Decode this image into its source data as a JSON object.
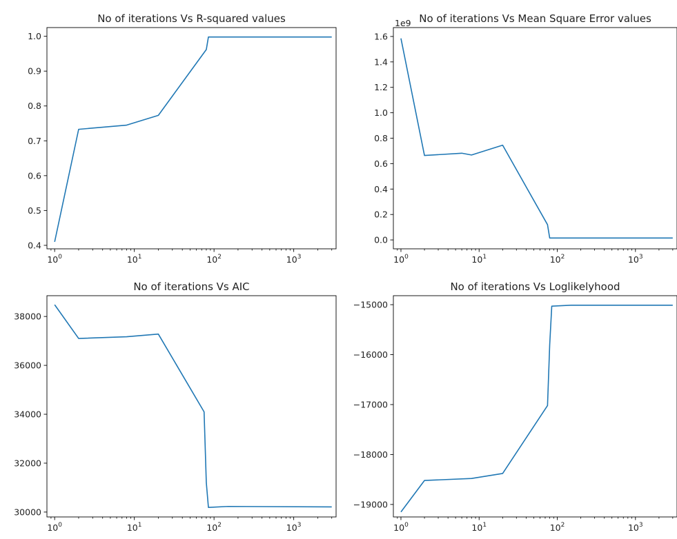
{
  "colors": {
    "line": "#1f77b4",
    "axes": "#000000",
    "text": "#222222",
    "background": "#ffffff"
  },
  "chart_data": [
    {
      "type": "line",
      "title": "No of iterations Vs R-squared values",
      "xlabel": "",
      "ylabel": "",
      "xscale": "log",
      "xlim": [
        0.8,
        3400
      ],
      "ylim": [
        0.39,
        1.025
      ],
      "grid": false,
      "x": [
        1,
        2,
        8,
        20,
        80,
        85,
        150,
        3000
      ],
      "values": [
        0.41,
        0.733,
        0.745,
        0.773,
        0.962,
        0.998,
        0.998,
        0.998
      ],
      "x_ticks": [
        {
          "value": 1,
          "label": "0"
        },
        {
          "value": 10,
          "label": "1"
        },
        {
          "value": 100,
          "label": "2"
        },
        {
          "value": 1000,
          "label": "3"
        }
      ],
      "y_ticks": [
        {
          "value": 0.4,
          "label": "0.4"
        },
        {
          "value": 0.5,
          "label": "0.5"
        },
        {
          "value": 0.6,
          "label": "0.6"
        },
        {
          "value": 0.7,
          "label": "0.7"
        },
        {
          "value": 0.8,
          "label": "0.8"
        },
        {
          "value": 0.9,
          "label": "0.9"
        },
        {
          "value": 1.0,
          "label": "1.0"
        }
      ],
      "offset_label": ""
    },
    {
      "type": "line",
      "title": "No of iterations Vs Mean Square Error values",
      "xlabel": "",
      "ylabel": "",
      "xscale": "log",
      "xlim": [
        0.8,
        3400
      ],
      "ylim": [
        -0.07,
        1.67
      ],
      "grid": false,
      "x": [
        1,
        2,
        6,
        8,
        20,
        75,
        80,
        150,
        3000
      ],
      "values": [
        1.585,
        0.664,
        0.682,
        0.668,
        0.745,
        0.12,
        0.015,
        0.015,
        0.015
      ],
      "x_ticks": [
        {
          "value": 1,
          "label": "0"
        },
        {
          "value": 10,
          "label": "1"
        },
        {
          "value": 100,
          "label": "2"
        },
        {
          "value": 1000,
          "label": "3"
        }
      ],
      "y_ticks": [
        {
          "value": 0.0,
          "label": "0.0"
        },
        {
          "value": 0.2,
          "label": "0.2"
        },
        {
          "value": 0.4,
          "label": "0.4"
        },
        {
          "value": 0.6,
          "label": "0.6"
        },
        {
          "value": 0.8,
          "label": "0.8"
        },
        {
          "value": 1.0,
          "label": "1.0"
        },
        {
          "value": 1.2,
          "label": "1.2"
        },
        {
          "value": 1.4,
          "label": "1.4"
        },
        {
          "value": 1.6,
          "label": "1.6"
        }
      ],
      "offset_label": "1e9"
    },
    {
      "type": "line",
      "title": "No of iterations Vs AIC",
      "xlabel": "",
      "ylabel": "",
      "xscale": "log",
      "xlim": [
        0.8,
        3400
      ],
      "ylim": [
        29800,
        38850
      ],
      "grid": false,
      "x": [
        1,
        2,
        8,
        20,
        75,
        80,
        85,
        150,
        3000
      ],
      "values": [
        38480,
        37100,
        37170,
        37280,
        34100,
        31200,
        30190,
        30230,
        30210
      ],
      "x_ticks": [
        {
          "value": 1,
          "label": "0"
        },
        {
          "value": 10,
          "label": "1"
        },
        {
          "value": 100,
          "label": "2"
        },
        {
          "value": 1000,
          "label": "3"
        }
      ],
      "y_ticks": [
        {
          "value": 30000,
          "label": "30000"
        },
        {
          "value": 32000,
          "label": "32000"
        },
        {
          "value": 34000,
          "label": "34000"
        },
        {
          "value": 36000,
          "label": "36000"
        },
        {
          "value": 38000,
          "label": "38000"
        }
      ],
      "offset_label": ""
    },
    {
      "type": "line",
      "title": "No of iterations Vs Loglikelyhood",
      "xlabel": "",
      "ylabel": "",
      "xscale": "log",
      "xlim": [
        0.8,
        3400
      ],
      "ylim": [
        -19250,
        -14820
      ],
      "grid": false,
      "x": [
        1,
        2,
        8,
        20,
        75,
        80,
        85,
        150,
        3000
      ],
      "values": [
        -19150,
        -18520,
        -18480,
        -18380,
        -17020,
        -15800,
        -15030,
        -15010,
        -15010
      ],
      "x_ticks": [
        {
          "value": 1,
          "label": "0"
        },
        {
          "value": 10,
          "label": "1"
        },
        {
          "value": 100,
          "label": "2"
        },
        {
          "value": 1000,
          "label": "3"
        }
      ],
      "y_ticks": [
        {
          "value": -19000,
          "label": "−19000"
        },
        {
          "value": -18000,
          "label": "−18000"
        },
        {
          "value": -17000,
          "label": "−17000"
        },
        {
          "value": -16000,
          "label": "−16000"
        },
        {
          "value": -15000,
          "label": "−15000"
        }
      ],
      "offset_label": ""
    }
  ]
}
